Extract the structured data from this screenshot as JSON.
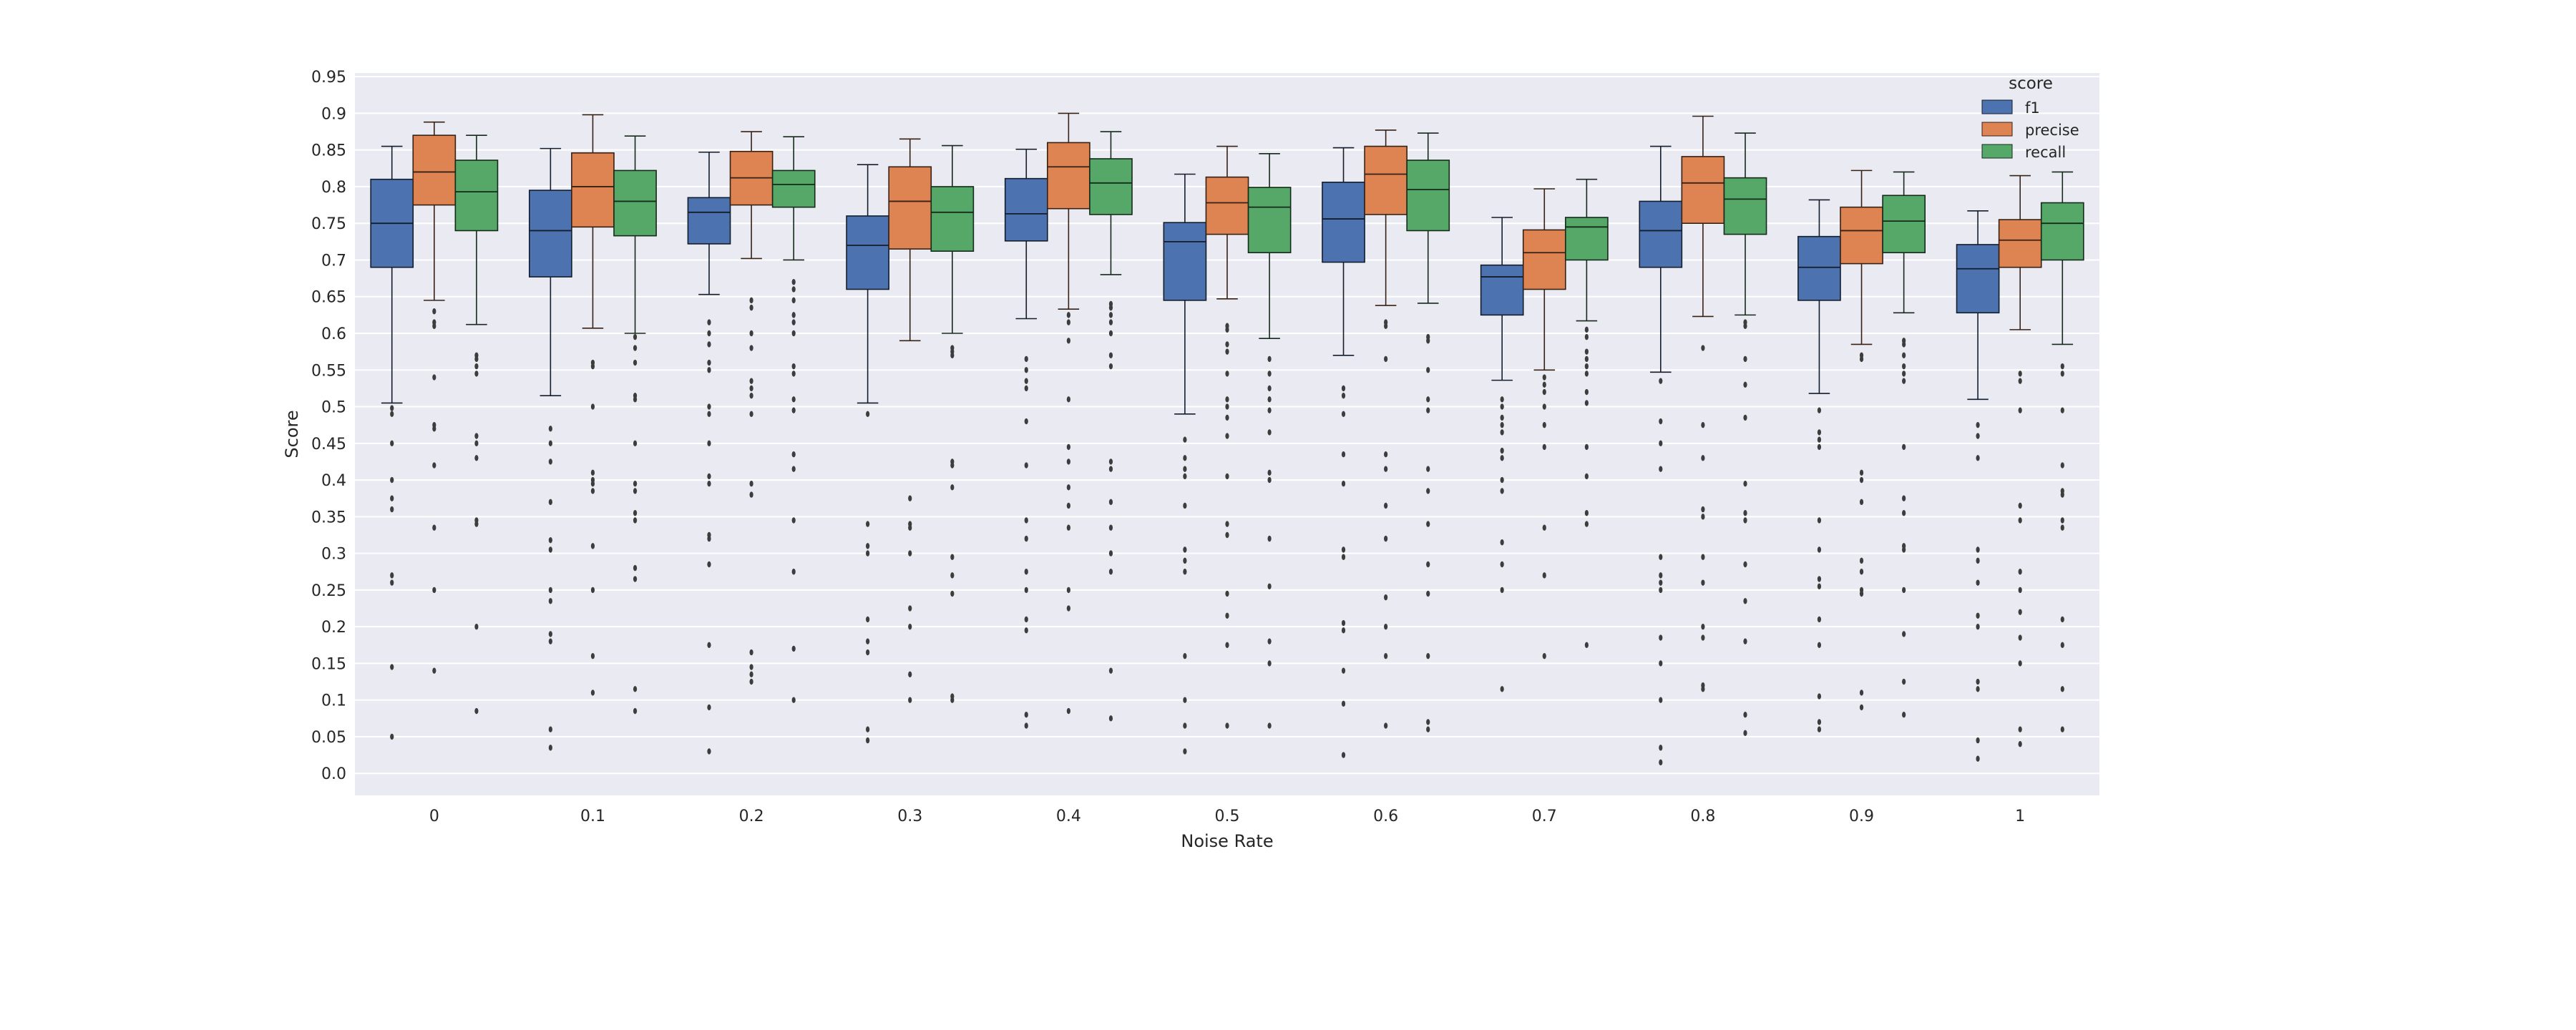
{
  "chart_data": {
    "type": "box",
    "title": "",
    "xlabel": "Noise Rate",
    "ylabel": "Score",
    "categories": [
      "0",
      "0.1",
      "0.2",
      "0.3",
      "0.4",
      "0.5",
      "0.6",
      "0.7",
      "0.8",
      "0.9",
      "1"
    ],
    "yticks": [
      "0.0",
      "0.05",
      "0.1",
      "0.15",
      "0.2",
      "0.25",
      "0.3",
      "0.35",
      "0.4",
      "0.45",
      "0.5",
      "0.55",
      "0.6",
      "0.65",
      "0.7",
      "0.75",
      "0.8",
      "0.85",
      "0.9",
      "0.95"
    ],
    "ylim": [
      -0.03,
      0.955
    ],
    "grid": true,
    "legend": {
      "title": "score",
      "position": "top-right"
    },
    "series": [
      {
        "name": "f1",
        "color": "#4c72b0",
        "boxes": [
          {
            "low": 0.505,
            "q1": 0.69,
            "median": 0.75,
            "q3": 0.81,
            "high": 0.855,
            "outliers": [
              0.498,
              0.49,
              0.45,
              0.4,
              0.375,
              0.36,
              0.27,
              0.26,
              0.145,
              0.05
            ]
          },
          {
            "low": 0.515,
            "q1": 0.677,
            "median": 0.74,
            "q3": 0.795,
            "high": 0.852,
            "outliers": [
              0.47,
              0.45,
              0.425,
              0.37,
              0.318,
              0.305,
              0.25,
              0.235,
              0.19,
              0.18,
              0.06,
              0.035
            ]
          },
          {
            "low": 0.653,
            "q1": 0.722,
            "median": 0.765,
            "q3": 0.785,
            "high": 0.847,
            "outliers": [
              0.615,
              0.6,
              0.585,
              0.56,
              0.55,
              0.5,
              0.49,
              0.45,
              0.405,
              0.395,
              0.325,
              0.32,
              0.285,
              0.175,
              0.09,
              0.03
            ]
          },
          {
            "low": 0.505,
            "q1": 0.66,
            "median": 0.72,
            "q3": 0.76,
            "high": 0.83,
            "outliers": [
              0.49,
              0.34,
              0.31,
              0.3,
              0.21,
              0.18,
              0.165,
              0.06,
              0.045
            ]
          },
          {
            "low": 0.62,
            "q1": 0.726,
            "median": 0.763,
            "q3": 0.811,
            "high": 0.851,
            "outliers": [
              0.565,
              0.55,
              0.535,
              0.525,
              0.48,
              0.42,
              0.345,
              0.32,
              0.275,
              0.25,
              0.21,
              0.195,
              0.08,
              0.065
            ]
          },
          {
            "low": 0.49,
            "q1": 0.645,
            "median": 0.725,
            "q3": 0.751,
            "high": 0.817,
            "outliers": [
              0.455,
              0.43,
              0.415,
              0.405,
              0.365,
              0.305,
              0.29,
              0.275,
              0.16,
              0.1,
              0.065,
              0.03
            ]
          },
          {
            "low": 0.57,
            "q1": 0.697,
            "median": 0.756,
            "q3": 0.806,
            "high": 0.853,
            "outliers": [
              0.525,
              0.515,
              0.49,
              0.435,
              0.395,
              0.305,
              0.295,
              0.205,
              0.195,
              0.14,
              0.095,
              0.025
            ]
          },
          {
            "low": 0.536,
            "q1": 0.625,
            "median": 0.677,
            "q3": 0.693,
            "high": 0.758,
            "outliers": [
              0.51,
              0.5,
              0.485,
              0.475,
              0.465,
              0.44,
              0.43,
              0.4,
              0.385,
              0.315,
              0.285,
              0.25,
              0.115
            ]
          },
          {
            "low": 0.547,
            "q1": 0.69,
            "median": 0.74,
            "q3": 0.78,
            "high": 0.855,
            "outliers": [
              0.535,
              0.48,
              0.45,
              0.415,
              0.295,
              0.27,
              0.26,
              0.25,
              0.185,
              0.15,
              0.1,
              0.035,
              0.015
            ]
          },
          {
            "low": 0.518,
            "q1": 0.645,
            "median": 0.69,
            "q3": 0.732,
            "high": 0.782,
            "outliers": [
              0.495,
              0.465,
              0.455,
              0.445,
              0.345,
              0.305,
              0.265,
              0.255,
              0.21,
              0.175,
              0.105,
              0.07,
              0.06
            ]
          },
          {
            "low": 0.51,
            "q1": 0.628,
            "median": 0.688,
            "q3": 0.721,
            "high": 0.767,
            "outliers": [
              0.475,
              0.46,
              0.43,
              0.305,
              0.29,
              0.26,
              0.215,
              0.2,
              0.125,
              0.115,
              0.045,
              0.02
            ]
          }
        ]
      },
      {
        "name": "precise",
        "color": "#dd8452",
        "boxes": [
          {
            "low": 0.645,
            "q1": 0.775,
            "median": 0.82,
            "q3": 0.87,
            "high": 0.888,
            "outliers": [
              0.63,
              0.615,
              0.61,
              0.54,
              0.475,
              0.47,
              0.42,
              0.335,
              0.25,
              0.14
            ]
          },
          {
            "low": 0.607,
            "q1": 0.745,
            "median": 0.8,
            "q3": 0.846,
            "high": 0.898,
            "outliers": [
              0.56,
              0.555,
              0.5,
              0.41,
              0.4,
              0.395,
              0.385,
              0.31,
              0.25,
              0.16,
              0.11
            ]
          },
          {
            "low": 0.702,
            "q1": 0.775,
            "median": 0.812,
            "q3": 0.848,
            "high": 0.875,
            "outliers": [
              0.645,
              0.635,
              0.6,
              0.58,
              0.535,
              0.525,
              0.515,
              0.49,
              0.395,
              0.38,
              0.165,
              0.145,
              0.135,
              0.125
            ]
          },
          {
            "low": 0.59,
            "q1": 0.715,
            "median": 0.78,
            "q3": 0.827,
            "high": 0.865,
            "outliers": [
              0.375,
              0.34,
              0.335,
              0.3,
              0.225,
              0.2,
              0.135,
              0.1
            ]
          },
          {
            "low": 0.633,
            "q1": 0.77,
            "median": 0.827,
            "q3": 0.86,
            "high": 0.9,
            "outliers": [
              0.625,
              0.615,
              0.59,
              0.51,
              0.445,
              0.425,
              0.39,
              0.365,
              0.335,
              0.25,
              0.225,
              0.085
            ]
          },
          {
            "low": 0.647,
            "q1": 0.735,
            "median": 0.778,
            "q3": 0.813,
            "high": 0.855,
            "outliers": [
              0.61,
              0.605,
              0.585,
              0.575,
              0.545,
              0.51,
              0.5,
              0.485,
              0.46,
              0.405,
              0.34,
              0.325,
              0.245,
              0.215,
              0.175,
              0.065
            ]
          },
          {
            "low": 0.638,
            "q1": 0.762,
            "median": 0.817,
            "q3": 0.855,
            "high": 0.877,
            "outliers": [
              0.615,
              0.61,
              0.565,
              0.435,
              0.415,
              0.365,
              0.32,
              0.24,
              0.2,
              0.16,
              0.065
            ]
          },
          {
            "low": 0.55,
            "q1": 0.66,
            "median": 0.71,
            "q3": 0.741,
            "high": 0.797,
            "outliers": [
              0.54,
              0.53,
              0.52,
              0.5,
              0.475,
              0.445,
              0.335,
              0.27,
              0.16
            ]
          },
          {
            "low": 0.623,
            "q1": 0.75,
            "median": 0.805,
            "q3": 0.841,
            "high": 0.896,
            "outliers": [
              0.58,
              0.475,
              0.43,
              0.36,
              0.35,
              0.295,
              0.26,
              0.2,
              0.185,
              0.12,
              0.115
            ]
          },
          {
            "low": 0.585,
            "q1": 0.695,
            "median": 0.74,
            "q3": 0.772,
            "high": 0.822,
            "outliers": [
              0.57,
              0.565,
              0.41,
              0.4,
              0.37,
              0.29,
              0.275,
              0.25,
              0.245,
              0.11,
              0.09
            ]
          },
          {
            "low": 0.605,
            "q1": 0.69,
            "median": 0.727,
            "q3": 0.755,
            "high": 0.815,
            "outliers": [
              0.545,
              0.535,
              0.495,
              0.365,
              0.345,
              0.275,
              0.25,
              0.22,
              0.185,
              0.15,
              0.06,
              0.04
            ]
          }
        ]
      },
      {
        "name": "recall",
        "color": "#55a868",
        "boxes": [
          {
            "low": 0.612,
            "q1": 0.74,
            "median": 0.793,
            "q3": 0.836,
            "high": 0.87,
            "outliers": [
              0.57,
              0.565,
              0.555,
              0.545,
              0.46,
              0.45,
              0.43,
              0.345,
              0.34,
              0.2,
              0.085
            ]
          },
          {
            "low": 0.6,
            "q1": 0.733,
            "median": 0.78,
            "q3": 0.822,
            "high": 0.869,
            "outliers": [
              0.595,
              0.58,
              0.56,
              0.515,
              0.51,
              0.45,
              0.395,
              0.385,
              0.355,
              0.345,
              0.28,
              0.265,
              0.115,
              0.085
            ]
          },
          {
            "low": 0.7,
            "q1": 0.772,
            "median": 0.803,
            "q3": 0.822,
            "high": 0.868,
            "outliers": [
              0.67,
              0.66,
              0.645,
              0.625,
              0.615,
              0.6,
              0.555,
              0.545,
              0.51,
              0.495,
              0.435,
              0.415,
              0.345,
              0.275,
              0.17,
              0.1
            ]
          },
          {
            "low": 0.6,
            "q1": 0.712,
            "median": 0.765,
            "q3": 0.8,
            "high": 0.856,
            "outliers": [
              0.58,
              0.575,
              0.57,
              0.425,
              0.42,
              0.39,
              0.295,
              0.27,
              0.245,
              0.105,
              0.1
            ]
          },
          {
            "low": 0.68,
            "q1": 0.762,
            "median": 0.805,
            "q3": 0.838,
            "high": 0.875,
            "outliers": [
              0.64,
              0.635,
              0.625,
              0.615,
              0.6,
              0.57,
              0.555,
              0.425,
              0.415,
              0.37,
              0.335,
              0.3,
              0.275,
              0.14,
              0.075
            ]
          },
          {
            "low": 0.593,
            "q1": 0.71,
            "median": 0.772,
            "q3": 0.799,
            "high": 0.845,
            "outliers": [
              0.565,
              0.545,
              0.525,
              0.51,
              0.495,
              0.465,
              0.41,
              0.4,
              0.32,
              0.255,
              0.18,
              0.15,
              0.065
            ]
          },
          {
            "low": 0.641,
            "q1": 0.74,
            "median": 0.796,
            "q3": 0.836,
            "high": 0.873,
            "outliers": [
              0.595,
              0.59,
              0.55,
              0.51,
              0.495,
              0.415,
              0.385,
              0.34,
              0.285,
              0.245,
              0.16,
              0.07,
              0.06
            ]
          },
          {
            "low": 0.617,
            "q1": 0.7,
            "median": 0.745,
            "q3": 0.758,
            "high": 0.81,
            "outliers": [
              0.605,
              0.595,
              0.575,
              0.565,
              0.555,
              0.545,
              0.52,
              0.505,
              0.445,
              0.405,
              0.355,
              0.34,
              0.175
            ]
          },
          {
            "low": 0.625,
            "q1": 0.735,
            "median": 0.783,
            "q3": 0.812,
            "high": 0.873,
            "outliers": [
              0.615,
              0.61,
              0.565,
              0.53,
              0.485,
              0.395,
              0.355,
              0.345,
              0.285,
              0.235,
              0.18,
              0.08,
              0.055
            ]
          },
          {
            "low": 0.628,
            "q1": 0.71,
            "median": 0.753,
            "q3": 0.788,
            "high": 0.82,
            "outliers": [
              0.59,
              0.585,
              0.57,
              0.555,
              0.545,
              0.535,
              0.445,
              0.375,
              0.355,
              0.31,
              0.305,
              0.25,
              0.19,
              0.125,
              0.08
            ]
          },
          {
            "low": 0.585,
            "q1": 0.7,
            "median": 0.75,
            "q3": 0.778,
            "high": 0.82,
            "outliers": [
              0.555,
              0.545,
              0.495,
              0.42,
              0.385,
              0.38,
              0.345,
              0.335,
              0.21,
              0.175,
              0.115,
              0.06
            ]
          }
        ]
      }
    ]
  }
}
